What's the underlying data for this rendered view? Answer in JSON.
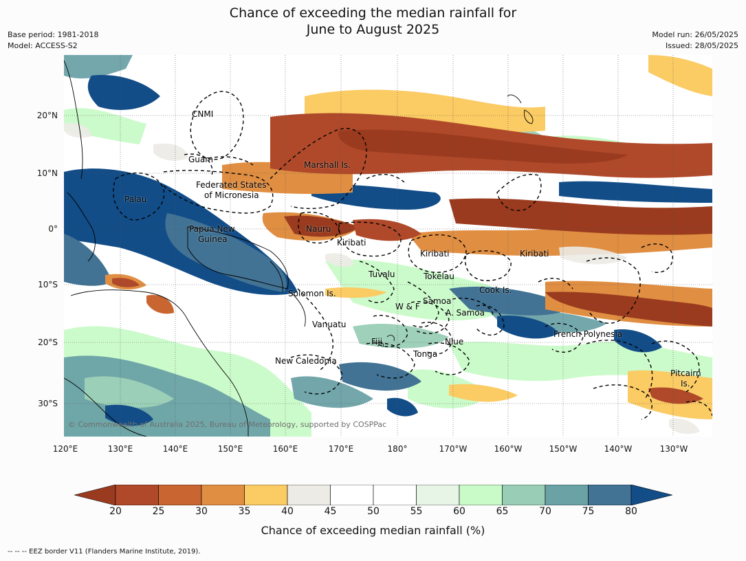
{
  "title": {
    "line1": "Chance of exceeding the median rainfall for",
    "line2": "June to August 2025"
  },
  "meta_left": {
    "base_period": "Base period: 1981-2018",
    "model": "Model: ACCESS-S2"
  },
  "meta_right": {
    "model_run": "Model run: 26/05/2025",
    "issued": "Issued: 28/05/2025"
  },
  "map": {
    "lat_ticks": [
      "20°N",
      "10°N",
      "0°",
      "10°S",
      "20°S",
      "30°S"
    ],
    "lon_ticks": [
      "120°E",
      "130°E",
      "140°E",
      "150°E",
      "160°E",
      "170°E",
      "180°",
      "170°W",
      "160°W",
      "150°W",
      "140°W",
      "130°W"
    ],
    "regions": [
      {
        "id": "cnmi",
        "text": "CNMI"
      },
      {
        "id": "guam",
        "text": "Guam"
      },
      {
        "id": "marshall",
        "text": "Marshall Is."
      },
      {
        "id": "fsm1",
        "text": "Federated States"
      },
      {
        "id": "fsm2",
        "text": "of Micronesia"
      },
      {
        "id": "palau",
        "text": "Palau"
      },
      {
        "id": "png1",
        "text": "Papua New"
      },
      {
        "id": "png2",
        "text": "Guinea"
      },
      {
        "id": "nauru",
        "text": "Nauru"
      },
      {
        "id": "kiribati1",
        "text": "Kiribati"
      },
      {
        "id": "kiribati2",
        "text": "Kiribati"
      },
      {
        "id": "kiribati3",
        "text": "Kiribati"
      },
      {
        "id": "tuvalu",
        "text": "Tuvalu"
      },
      {
        "id": "tokelau",
        "text": "Tokelau"
      },
      {
        "id": "cook",
        "text": "Cook Is."
      },
      {
        "id": "solomon",
        "text": "Solomon Is."
      },
      {
        "id": "wf",
        "text": "W & F"
      },
      {
        "id": "samoa",
        "text": "Samoa"
      },
      {
        "id": "asamoa",
        "text": "A. Samoa"
      },
      {
        "id": "vanuatu",
        "text": "Vanuatu"
      },
      {
        "id": "fiji",
        "text": "Fiji"
      },
      {
        "id": "niue",
        "text": "Niue"
      },
      {
        "id": "tonga",
        "text": "Tonga"
      },
      {
        "id": "frpoly",
        "text": "French Polynesia"
      },
      {
        "id": "newcal",
        "text": "New Caledonia"
      },
      {
        "id": "pitcairn1",
        "text": "Pitcairn"
      },
      {
        "id": "pitcairn2",
        "text": "Is."
      }
    ],
    "copyright": "© Commonwealth of Australia 2025, Bureau of Meteorology, supported by COSPPac"
  },
  "colorbar": {
    "ticks": [
      "20",
      "25",
      "30",
      "35",
      "40",
      "45",
      "50",
      "55",
      "60",
      "65",
      "70",
      "75",
      "80"
    ],
    "colors": [
      "#9a3b1f",
      "#b0492a",
      "#c86530",
      "#e08e42",
      "#fbcb64",
      "#ecebe6",
      "#ffffff",
      "#ffffff",
      "#e7f5e6",
      "#c9fbc8",
      "#99cdb6",
      "#6ba2a6",
      "#427394",
      "#124d88"
    ],
    "label": "Chance of exceeding median rainfall (%)"
  },
  "footnote": "--  --  -- EEZ border V11 (Flanders Marine Institute, 2019)."
}
